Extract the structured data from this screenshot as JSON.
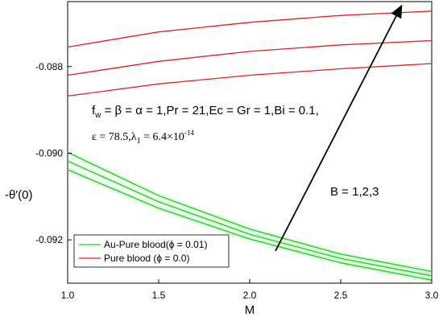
{
  "chart_data": {
    "type": "line",
    "xlabel": "M",
    "ylabel": "-θ′(0)",
    "xlim": [
      1.0,
      3.0
    ],
    "ylim": [
      -0.093,
      -0.0865
    ],
    "x_ticks": [
      "1.0",
      "1.5",
      "2.0",
      "2.5",
      "3.0"
    ],
    "y_ticks": [
      "-0.088",
      "-0.090",
      "-0.092"
    ],
    "x": [
      1.0,
      1.5,
      2.0,
      2.5,
      3.0
    ],
    "series": [
      {
        "name": "Pure blood (ϕ = 0.0)",
        "color": "#e02020",
        "values": [
          -0.08755,
          -0.0872,
          -0.08698,
          -0.08682,
          -0.08672
        ]
      },
      {
        "name": "",
        "color": "#e02020",
        "values": [
          -0.0882,
          -0.08788,
          -0.08765,
          -0.0875,
          -0.0874
        ]
      },
      {
        "name": "",
        "color": "#e02020",
        "values": [
          -0.08868,
          -0.0884,
          -0.0882,
          -0.08805,
          -0.08793
        ]
      },
      {
        "name": "Au-Pure blood(ϕ = 0.01)",
        "color": "#22cc22",
        "values": [
          -0.08998,
          -0.09098,
          -0.09175,
          -0.09233,
          -0.09273
        ]
      },
      {
        "name": "",
        "color": "#22cc22",
        "values": [
          -0.09018,
          -0.09112,
          -0.09187,
          -0.09243,
          -0.09283
        ]
      },
      {
        "name": "",
        "color": "#22cc22",
        "values": [
          -0.09038,
          -0.09127,
          -0.09198,
          -0.09253,
          -0.09293
        ]
      }
    ],
    "annotations": {
      "params_line1": "fw = β = α = 1,Pr = 21,Ec = Gr = 1,Bi = 0.1,",
      "params_line2": "ε = 78.5,λ1 = 6.4×10-14",
      "arrow_label": "B = 1,2,3"
    },
    "legend": {
      "position": "bottom-left",
      "entries": [
        "Au-Pure blood(ϕ = 0.01)",
        "Pure blood (ϕ = 0.0)"
      ]
    }
  }
}
